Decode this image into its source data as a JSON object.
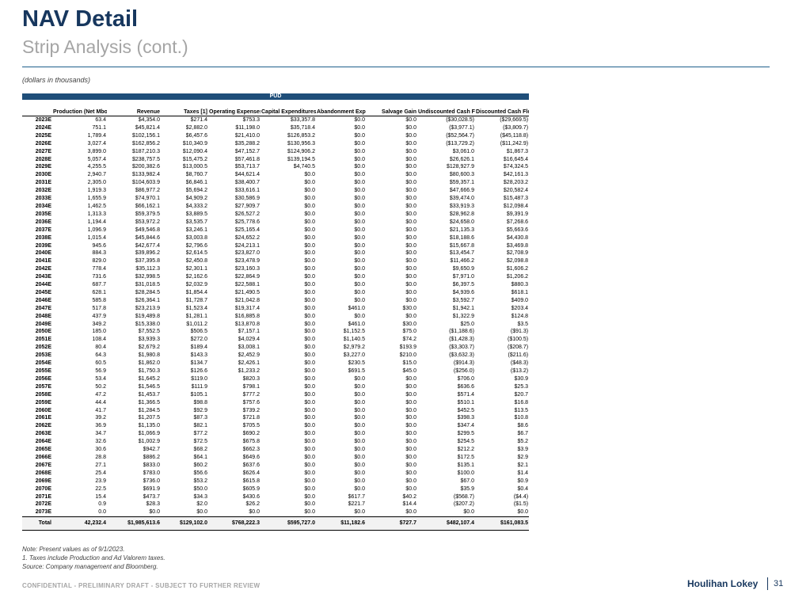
{
  "header": {
    "title": "NAV Detail",
    "subtitle": "Strip Analysis (cont.)",
    "units": "(dollars in thousands)"
  },
  "table": {
    "group": "PUD",
    "columns": [
      "",
      "Production (Net Mboe)",
      "Revenue",
      "Taxes [1]",
      "Operating Expenses",
      "Capital Expenditures",
      "Abandonment Expenses",
      "Salvage Gain",
      "Undiscounted Cash Flow",
      "Discounted Cash Flow (PV10)"
    ],
    "rows": [
      [
        "2023E",
        "63.4",
        "$4,354.0",
        "$271.4",
        "$753.3",
        "$33,357.8",
        "$0.0",
        "$0.0",
        "($30,028.5)",
        "($29,669.5)"
      ],
      [
        "2024E",
        "751.1",
        "$45,821.4",
        "$2,882.0",
        "$11,198.0",
        "$35,718.4",
        "$0.0",
        "$0.0",
        "($3,977.1)",
        "($3,809.7)"
      ],
      [
        "2025E",
        "1,789.4",
        "$102,156.1",
        "$6,457.6",
        "$21,410.0",
        "$126,853.2",
        "$0.0",
        "$0.0",
        "($52,564.7)",
        "($45,118.8)"
      ],
      [
        "2026E",
        "3,027.4",
        "$162,856.2",
        "$10,340.9",
        "$35,288.2",
        "$130,956.3",
        "$0.0",
        "$0.0",
        "($13,729.2)",
        "($11,242.9)"
      ],
      [
        "2027E",
        "3,899.0",
        "$187,210.3",
        "$12,090.4",
        "$47,152.7",
        "$124,906.2",
        "$0.0",
        "$0.0",
        "$3,061.0",
        "$1,867.3"
      ],
      [
        "2028E",
        "5,057.4",
        "$238,757.5",
        "$15,475.2",
        "$57,461.8",
        "$139,194.5",
        "$0.0",
        "$0.0",
        "$26,626.1",
        "$16,645.4"
      ],
      [
        "2029E",
        "4,255.5",
        "$200,382.6",
        "$13,000.5",
        "$53,713.7",
        "$4,740.5",
        "$0.0",
        "$0.0",
        "$128,927.9",
        "$74,324.5"
      ],
      [
        "2030E",
        "2,940.7",
        "$133,982.4",
        "$8,760.7",
        "$44,621.4",
        "$0.0",
        "$0.0",
        "$0.0",
        "$80,600.3",
        "$42,161.3"
      ],
      [
        "2031E",
        "2,305.0",
        "$104,603.9",
        "$6,846.1",
        "$38,400.7",
        "$0.0",
        "$0.0",
        "$0.0",
        "$59,357.1",
        "$28,203.2"
      ],
      [
        "2032E",
        "1,919.3",
        "$86,977.2",
        "$5,694.2",
        "$33,616.1",
        "$0.0",
        "$0.0",
        "$0.0",
        "$47,666.9",
        "$20,582.4"
      ],
      [
        "2033E",
        "1,655.9",
        "$74,970.1",
        "$4,909.2",
        "$30,586.9",
        "$0.0",
        "$0.0",
        "$0.0",
        "$39,474.0",
        "$15,487.3"
      ],
      [
        "2034E",
        "1,462.5",
        "$66,162.1",
        "$4,333.2",
        "$27,909.7",
        "$0.0",
        "$0.0",
        "$0.0",
        "$33,919.3",
        "$12,098.4"
      ],
      [
        "2035E",
        "1,313.3",
        "$59,379.5",
        "$3,889.5",
        "$26,527.2",
        "$0.0",
        "$0.0",
        "$0.0",
        "$28,962.8",
        "$9,391.9"
      ],
      [
        "2036E",
        "1,194.4",
        "$53,972.2",
        "$3,535.7",
        "$25,778.6",
        "$0.0",
        "$0.0",
        "$0.0",
        "$24,658.0",
        "$7,268.6"
      ],
      [
        "2037E",
        "1,096.9",
        "$49,546.8",
        "$3,246.1",
        "$25,165.4",
        "$0.0",
        "$0.0",
        "$0.0",
        "$21,135.3",
        "$5,663.6"
      ],
      [
        "2038E",
        "1,015.4",
        "$45,844.6",
        "$3,003.8",
        "$24,652.2",
        "$0.0",
        "$0.0",
        "$0.0",
        "$18,188.6",
        "$4,430.8"
      ],
      [
        "2039E",
        "945.6",
        "$42,677.4",
        "$2,796.6",
        "$24,213.1",
        "$0.0",
        "$0.0",
        "$0.0",
        "$15,667.8",
        "$3,469.8"
      ],
      [
        "2040E",
        "884.3",
        "$39,896.2",
        "$2,614.5",
        "$23,827.0",
        "$0.0",
        "$0.0",
        "$0.0",
        "$13,454.7",
        "$2,708.9"
      ],
      [
        "2041E",
        "829.0",
        "$37,395.8",
        "$2,450.8",
        "$23,478.9",
        "$0.0",
        "$0.0",
        "$0.0",
        "$11,466.2",
        "$2,098.8"
      ],
      [
        "2042E",
        "778.4",
        "$35,112.3",
        "$2,301.1",
        "$23,160.3",
        "$0.0",
        "$0.0",
        "$0.0",
        "$9,650.9",
        "$1,606.2"
      ],
      [
        "2043E",
        "731.6",
        "$32,998.5",
        "$2,162.6",
        "$22,864.9",
        "$0.0",
        "$0.0",
        "$0.0",
        "$7,971.0",
        "$1,206.2"
      ],
      [
        "2044E",
        "687.7",
        "$31,018.5",
        "$2,032.9",
        "$22,588.1",
        "$0.0",
        "$0.0",
        "$0.0",
        "$6,397.5",
        "$880.3"
      ],
      [
        "2045E",
        "628.1",
        "$28,284.5",
        "$1,854.4",
        "$21,490.5",
        "$0.0",
        "$0.0",
        "$0.0",
        "$4,939.6",
        "$618.1"
      ],
      [
        "2046E",
        "585.8",
        "$26,364.1",
        "$1,728.7",
        "$21,042.8",
        "$0.0",
        "$0.0",
        "$0.0",
        "$3,592.7",
        "$409.0"
      ],
      [
        "2047E",
        "517.8",
        "$23,213.9",
        "$1,523.4",
        "$19,317.4",
        "$0.0",
        "$461.0",
        "$30.0",
        "$1,942.1",
        "$203.4"
      ],
      [
        "2048E",
        "437.9",
        "$19,489.8",
        "$1,281.1",
        "$16,885.8",
        "$0.0",
        "$0.0",
        "$0.0",
        "$1,322.9",
        "$124.8"
      ],
      [
        "2049E",
        "349.2",
        "$15,338.0",
        "$1,011.2",
        "$13,870.8",
        "$0.0",
        "$461.0",
        "$30.0",
        "$25.0",
        "$3.5"
      ],
      [
        "2050E",
        "185.0",
        "$7,552.5",
        "$506.5",
        "$7,157.1",
        "$0.0",
        "$1,152.5",
        "$75.0",
        "($1,188.6)",
        "($91.3)"
      ],
      [
        "2051E",
        "108.4",
        "$3,939.3",
        "$272.0",
        "$4,029.4",
        "$0.0",
        "$1,140.5",
        "$74.2",
        "($1,428.3)",
        "($100.5)"
      ],
      [
        "2052E",
        "80.4",
        "$2,679.2",
        "$189.4",
        "$3,008.1",
        "$0.0",
        "$2,979.2",
        "$193.9",
        "($3,303.7)",
        "($208.7)"
      ],
      [
        "2053E",
        "64.3",
        "$1,980.8",
        "$143.3",
        "$2,452.9",
        "$0.0",
        "$3,227.0",
        "$210.0",
        "($3,632.3)",
        "($211.6)"
      ],
      [
        "2054E",
        "60.5",
        "$1,862.0",
        "$134.7",
        "$2,426.1",
        "$0.0",
        "$230.5",
        "$15.0",
        "($914.3)",
        "($48.3)"
      ],
      [
        "2055E",
        "56.9",
        "$1,750.3",
        "$126.6",
        "$1,233.2",
        "$0.0",
        "$691.5",
        "$45.0",
        "($256.0)",
        "($13.2)"
      ],
      [
        "2056E",
        "53.4",
        "$1,645.2",
        "$119.0",
        "$820.3",
        "$0.0",
        "$0.0",
        "$0.0",
        "$706.0",
        "$30.9"
      ],
      [
        "2057E",
        "50.2",
        "$1,546.5",
        "$111.9",
        "$798.1",
        "$0.0",
        "$0.0",
        "$0.0",
        "$636.6",
        "$25.3"
      ],
      [
        "2058E",
        "47.2",
        "$1,453.7",
        "$105.1",
        "$777.2",
        "$0.0",
        "$0.0",
        "$0.0",
        "$571.4",
        "$20.7"
      ],
      [
        "2059E",
        "44.4",
        "$1,366.5",
        "$98.8",
        "$757.6",
        "$0.0",
        "$0.0",
        "$0.0",
        "$510.1",
        "$16.8"
      ],
      [
        "2060E",
        "41.7",
        "$1,284.5",
        "$92.9",
        "$739.2",
        "$0.0",
        "$0.0",
        "$0.0",
        "$452.5",
        "$13.5"
      ],
      [
        "2061E",
        "39.2",
        "$1,207.5",
        "$87.3",
        "$721.8",
        "$0.0",
        "$0.0",
        "$0.0",
        "$398.3",
        "$10.8"
      ],
      [
        "2062E",
        "36.9",
        "$1,135.0",
        "$82.1",
        "$705.5",
        "$0.0",
        "$0.0",
        "$0.0",
        "$347.4",
        "$8.6"
      ],
      [
        "2063E",
        "34.7",
        "$1,066.9",
        "$77.2",
        "$690.2",
        "$0.0",
        "$0.0",
        "$0.0",
        "$299.5",
        "$6.7"
      ],
      [
        "2064E",
        "32.6",
        "$1,002.9",
        "$72.5",
        "$675.8",
        "$0.0",
        "$0.0",
        "$0.0",
        "$254.5",
        "$5.2"
      ],
      [
        "2065E",
        "30.6",
        "$942.7",
        "$68.2",
        "$662.3",
        "$0.0",
        "$0.0",
        "$0.0",
        "$212.2",
        "$3.9"
      ],
      [
        "2066E",
        "28.8",
        "$886.2",
        "$64.1",
        "$649.6",
        "$0.0",
        "$0.0",
        "$0.0",
        "$172.5",
        "$2.9"
      ],
      [
        "2067E",
        "27.1",
        "$833.0",
        "$60.2",
        "$637.6",
        "$0.0",
        "$0.0",
        "$0.0",
        "$135.1",
        "$2.1"
      ],
      [
        "2068E",
        "25.4",
        "$783.0",
        "$56.6",
        "$626.4",
        "$0.0",
        "$0.0",
        "$0.0",
        "$100.0",
        "$1.4"
      ],
      [
        "2069E",
        "23.9",
        "$736.0",
        "$53.2",
        "$615.8",
        "$0.0",
        "$0.0",
        "$0.0",
        "$67.0",
        "$0.9"
      ],
      [
        "2070E",
        "22.5",
        "$691.9",
        "$50.0",
        "$605.9",
        "$0.0",
        "$0.0",
        "$0.0",
        "$35.9",
        "$0.4"
      ],
      [
        "2071E",
        "15.4",
        "$473.7",
        "$34.3",
        "$430.6",
        "$0.0",
        "$617.7",
        "$40.2",
        "($568.7)",
        "($4.4)"
      ],
      [
        "2072E",
        "0.9",
        "$28.3",
        "$2.0",
        "$26.2",
        "$0.0",
        "$221.7",
        "$14.4",
        "($207.2)",
        "($1.5)"
      ],
      [
        "2073E",
        "0.0",
        "$0.0",
        "$0.0",
        "$0.0",
        "$0.0",
        "$0.0",
        "$0.0",
        "$0.0",
        "$0.0"
      ]
    ],
    "total": [
      "Total",
      "42,232.4",
      "$1,985,613.6",
      "$129,102.0",
      "$768,222.3",
      "$595,727.0",
      "$11,182.6",
      "$727.7",
      "$482,107.4",
      "$161,083.5"
    ]
  },
  "notes": [
    "Note: Present values as of 9/1/2023.",
    "1. Taxes include Production and Ad Valorem taxes.",
    "Source: Company management and Bloomberg."
  ],
  "footer": {
    "confidential": "CONFIDENTIAL - PRELIMINARY DRAFT - SUBJECT TO FURTHER REVIEW",
    "brand": "Houlihan Lokey",
    "page": "31"
  }
}
